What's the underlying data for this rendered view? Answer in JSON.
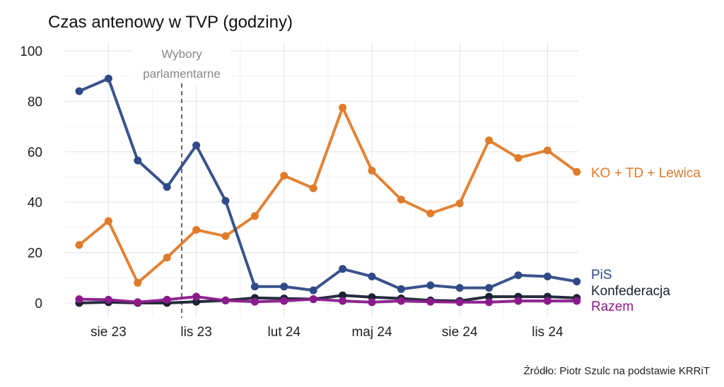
{
  "chart_data": {
    "type": "line",
    "title": "Czas antenowy w TVP (godziny)",
    "xlabel": "",
    "ylabel": "",
    "ylim": [
      -5,
      102
    ],
    "yticks": [
      0,
      20,
      40,
      60,
      80,
      100
    ],
    "x": [
      "2023-07",
      "2023-08",
      "2023-09",
      "2023-10",
      "2023-11",
      "2023-12",
      "2024-01",
      "2024-02",
      "2024-03",
      "2024-04",
      "2024-05",
      "2024-06",
      "2024-07",
      "2024-08",
      "2024-09",
      "2024-10",
      "2024-11",
      "2024-12"
    ],
    "xticks": [
      {
        "label": "sie 23",
        "x": "2023-08"
      },
      {
        "label": "lis 23",
        "x": "2023-11"
      },
      {
        "label": "lut 24",
        "x": "2024-02"
      },
      {
        "label": "maj 24",
        "x": "2024-05"
      },
      {
        "label": "sie 24",
        "x": "2024-08"
      },
      {
        "label": "lis 24",
        "x": "2024-11"
      }
    ],
    "grid": true,
    "legend": "direct labels at right",
    "annotation": {
      "line1": "Wybory",
      "line2": "parlamentarne",
      "x": "2023-10-15"
    },
    "series": [
      {
        "name": "KO + TD + Lewica",
        "color": "#e07b2a",
        "values": [
          23,
          32.5,
          8,
          18,
          29,
          26.5,
          34.5,
          50.5,
          45.5,
          77.5,
          52.5,
          41,
          35.5,
          39.5,
          64.5,
          57.5,
          60.5,
          52
        ]
      },
      {
        "name": "PiS",
        "color": "#2f4a87",
        "values": [
          84,
          89,
          56.5,
          46,
          62.5,
          40.5,
          6.5,
          6.5,
          5,
          13.5,
          10.5,
          5.5,
          7,
          6,
          6,
          11,
          10.5,
          8.5
        ]
      },
      {
        "name": "Konfederacja",
        "color": "#1b2234",
        "values": [
          0,
          0.3,
          0,
          0,
          0.5,
          1,
          2,
          1.8,
          1.5,
          3,
          2.3,
          1.8,
          1,
          0.8,
          2.5,
          2.5,
          2.5,
          2
        ]
      },
      {
        "name": "Razem",
        "color": "#8b1a8b",
        "values": [
          1.5,
          1.3,
          0.3,
          1.3,
          2.5,
          1,
          0.5,
          0.8,
          1.5,
          0.8,
          0.3,
          0.8,
          0.5,
          0.3,
          0.3,
          0.8,
          0.8,
          0.8
        ]
      }
    ]
  },
  "source": "Źródło: Piotr Szulc na podstawie KRRiT"
}
